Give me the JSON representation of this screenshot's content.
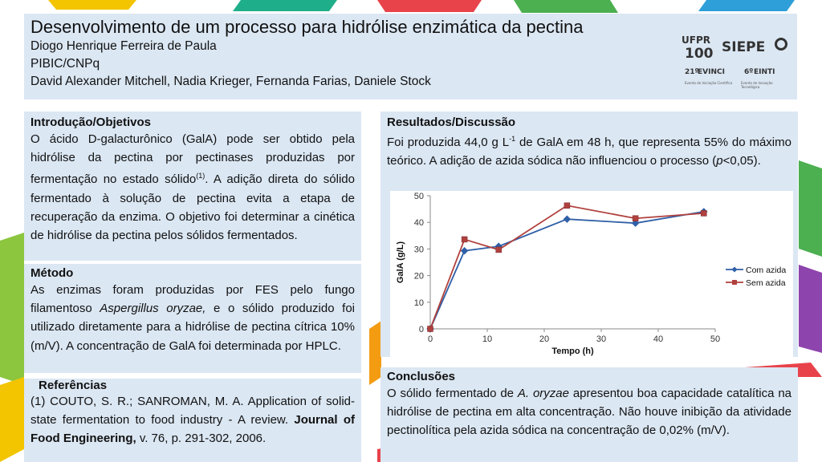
{
  "header": {
    "title": "Desenvolvimento de um processo para hidrólise enzimática da pectina",
    "author": "Diogo Henrique Ferreira de Paula",
    "program": "PIBIC/CNPq",
    "advisors": "David Alexander Mitchell, Nadia Krieger, Fernanda Farias, Daniele Stock",
    "logos": {
      "ufpr": "UFPR",
      "ufpr_years": "100",
      "siepe": "SIEPE",
      "evinci": "EVINCI",
      "evinci_prefix": "21º",
      "evinci_sub": "Evento de Iniciação Científica",
      "einti": "EINTI",
      "einti_prefix": "6º",
      "einti_sub": "Evento de Inovação Tecnológica"
    }
  },
  "intro": {
    "title": "Introdução/Objetivos",
    "text_before": "O ácido D-galacturônico (GalA) pode ser obtido pela hidrólise da pectina por pectinases produzidas por fermentação no estado sólido",
    "ref_sup": "(1)",
    "text_after": ". A adição direta do sólido fermentado à solução de pectina evita a etapa de recuperação da enzima. O objetivo foi determinar a cinética de hidrólise da pectina pelos sólidos fermentados."
  },
  "method": {
    "title": "Método",
    "text_before": "As enzimas foram produzidas por FES pelo fungo filamentoso ",
    "organism": "Aspergillus oryzae,",
    "text_after": " e o sólido produzido foi utilizado diretamente para a hidrólise de pectina cítrica 10% (m/V). A concentração de GalA foi determinada por HPLC."
  },
  "references": {
    "title": "Referências",
    "text_before": "(1) COUTO, S. R.; SANROMAN, M. A. Application of solid-state fermentation to food industry - A review. ",
    "journal": "Journal of Food Engineering,",
    "text_after": " v. 76, p. 291-302, 2006."
  },
  "results": {
    "title": "Resultados/Discussão",
    "text_1": "Foi produzida 44,0 g L",
    "sup": "-1",
    "text_2": " de GalA em 48 h, que representa 55% do máximo teórico. A adição de azida sódica não influenciou o processo (",
    "p_italic": "p",
    "text_3": "<0,05)."
  },
  "conclusions": {
    "title": "Conclusões",
    "text_before": "O sólido fermentado de ",
    "organism": "A. oryzae",
    "text_after": " apresentou boa capacidade catalítica na hidrólise de pectina em alta concentração. Não houve inibição da atividade pectinolítica pela azida sódica na concentração de 0,02% (m/V)."
  },
  "colors": {
    "panel": "#dbe7f3",
    "series_com_azida": "#2f5fa7",
    "series_sem_azida": "#b0413e",
    "shape_green": "#8cc63f",
    "shape_red": "#e8434b",
    "shape_yellow": "#f2c500",
    "shape_blue": "#2e9fd8",
    "shape_teal": "#1fae8a",
    "shape_purple": "#8e44ad",
    "shape_orange": "#f39c12"
  },
  "chart_data": {
    "type": "line",
    "xlabel": "Tempo (h)",
    "ylabel": "GalA (g/L)",
    "xlim": [
      0,
      50
    ],
    "ylim": [
      0,
      50
    ],
    "xticks": [
      "0",
      "10",
      "20",
      "30",
      "40",
      "50"
    ],
    "yticks": [
      "0",
      "10",
      "20",
      "30",
      "40",
      "50"
    ],
    "legend_position": "right",
    "grid": false,
    "series": [
      {
        "name": "Com azida",
        "marker": "diamond",
        "x": [
          0,
          6,
          12,
          24,
          36,
          48
        ],
        "y": [
          0,
          29.3,
          31,
          41.2,
          39.7,
          44
        ]
      },
      {
        "name": "Sem azida",
        "marker": "square",
        "x": [
          0,
          6,
          12,
          24,
          36,
          48
        ],
        "y": [
          0,
          33.6,
          29.7,
          46.3,
          41.5,
          43.4
        ]
      }
    ]
  }
}
